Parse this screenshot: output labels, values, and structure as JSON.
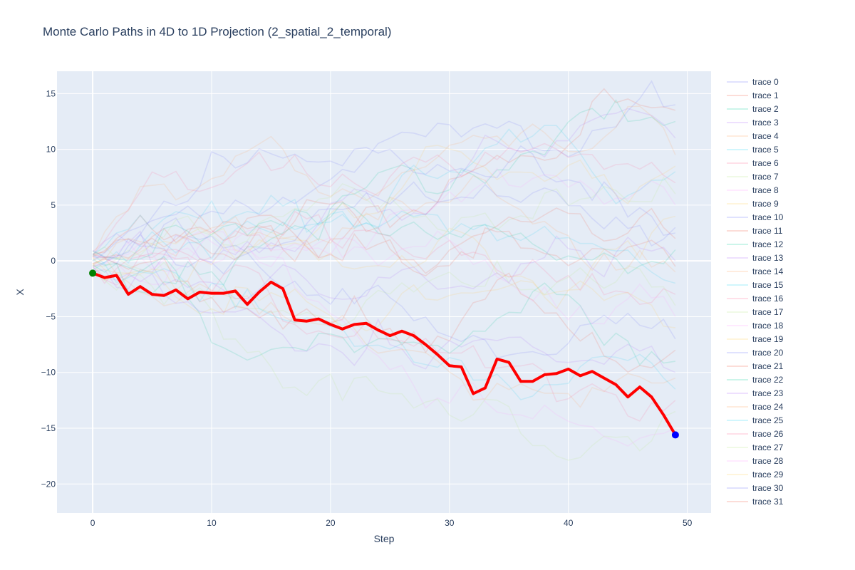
{
  "chart_data": {
    "type": "line",
    "title": "Monte Carlo Paths in 4D to 1D Projection (2_spatial_2_temporal)",
    "xlabel": "Step",
    "ylabel": "X",
    "xlim": [
      -3,
      52
    ],
    "ylim": [
      -22.6,
      17
    ],
    "x_ticks": [
      0,
      10,
      20,
      30,
      40,
      50
    ],
    "y_ticks": [
      -20,
      -15,
      -10,
      -5,
      0,
      5,
      10,
      15
    ],
    "grid": true,
    "legend_placement": "right",
    "background_traces": {
      "x_start": 0,
      "x_end": 49,
      "count": 32,
      "names": [
        "trace 0",
        "trace 1",
        "trace 2",
        "trace 3",
        "trace 4",
        "trace 5",
        "trace 6",
        "trace 7",
        "trace 8",
        "trace 9",
        "trace 10",
        "trace 11",
        "trace 12",
        "trace 13",
        "trace 14",
        "trace 15",
        "trace 16",
        "trace 17",
        "trace 18",
        "trace 19",
        "trace 20",
        "trace 21",
        "trace 22",
        "trace 23",
        "trace 24",
        "trace 25",
        "trace 26",
        "trace 27",
        "trace 28",
        "trace 29",
        "trace 30",
        "trace 31"
      ],
      "colors": [
        "#636efa",
        "#ef553b",
        "#00cc96",
        "#ab63fa",
        "#ffa15a",
        "#19d3f3",
        "#ff6692",
        "#b6e880",
        "#ff97ff",
        "#fecb52"
      ],
      "opacity": 0.15,
      "endpoints_y": [
        14.0,
        13.5,
        12.5,
        11.0,
        9.5,
        8.0,
        7.0,
        6.0,
        5.0,
        4.0,
        3.0,
        2.0,
        1.0,
        0.0,
        -1.0,
        -2.0,
        -3.0,
        -4.0,
        -5.0,
        -6.0,
        -7.0,
        -8.0,
        -9.0,
        -10.0,
        -10.5,
        -11.5,
        -12.5,
        -13.5,
        -15.0,
        8.5,
        2.5,
        -0.5
      ]
    },
    "highlight_path": {
      "color": "#ff0000",
      "x": [
        0,
        1,
        2,
        3,
        4,
        5,
        6,
        7,
        8,
        9,
        10,
        11,
        12,
        13,
        14,
        15,
        16,
        17,
        18,
        19,
        20,
        21,
        22,
        23,
        24,
        25,
        26,
        27,
        28,
        29,
        30,
        31,
        32,
        33,
        34,
        35,
        36,
        37,
        38,
        39,
        40,
        41,
        42,
        43,
        44,
        45,
        46,
        47,
        48,
        49
      ],
      "y": [
        -1.1,
        -1.5,
        -1.3,
        -3.0,
        -2.3,
        -3.0,
        -3.1,
        -2.6,
        -3.4,
        -2.8,
        -2.9,
        -2.9,
        -2.7,
        -3.9,
        -2.8,
        -1.9,
        -2.5,
        -5.3,
        -5.4,
        -5.2,
        -5.7,
        -6.1,
        -5.7,
        -5.6,
        -6.2,
        -6.7,
        -6.3,
        -6.7,
        -7.5,
        -8.4,
        -9.4,
        -9.5,
        -11.9,
        -11.4,
        -8.8,
        -9.1,
        -10.8,
        -10.8,
        -10.2,
        -10.1,
        -9.7,
        -10.3,
        -9.9,
        -10.5,
        -11.1,
        -12.2,
        -11.3,
        -12.2,
        -13.8,
        -15.6
      ]
    },
    "start_marker": {
      "x": 0,
      "y": -1.1,
      "color": "#008000"
    },
    "end_marker": {
      "x": 49,
      "y": -15.6,
      "color": "#0000ff"
    }
  }
}
